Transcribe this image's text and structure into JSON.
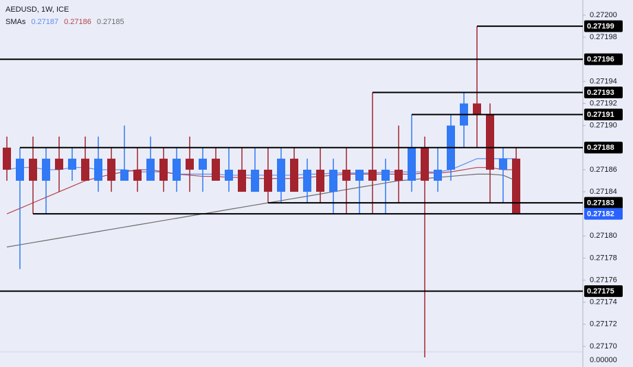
{
  "chart_data": {
    "type": "candlestick",
    "title": "AEDUSD, 1W, ICE",
    "sma_title": "SMAs",
    "sma_last": [
      0.27187,
      0.27186,
      0.27185
    ],
    "up_color": "#3179f5",
    "down_color": "#a3242e",
    "highlight_color": "#2962ff",
    "ylim": [
      0.271695,
      0.2720137
    ],
    "yticks": [
      {
        "value": 0.272,
        "label": "0.27200"
      },
      0.27198,
      0.27194,
      0.27192,
      {
        "value": 0.2719,
        "label": "0.27190"
      },
      0.27186,
      0.27184,
      {
        "value": 0.2718,
        "label": "0.27180"
      },
      0.27178,
      0.27176,
      0.27174,
      0.27172,
      {
        "value": 0.2717,
        "label": "0.27170"
      }
    ],
    "bottom_label": "0.00000",
    "levels": [
      0.27199,
      0.27196,
      0.27193,
      0.27191,
      0.27188,
      0.27183,
      0.27182,
      0.27175
    ],
    "open": [
      0.27188,
      0.27185,
      0.27187,
      0.27185,
      0.27187,
      0.27186,
      0.27187,
      0.27185,
      0.27187,
      0.27185,
      0.27186,
      0.27185,
      0.27187,
      0.27185,
      0.27187,
      0.27186,
      0.27187,
      0.27185,
      0.27186,
      0.27184,
      0.27186,
      0.27184,
      0.27187,
      0.27184,
      0.27186,
      0.27184,
      0.27186,
      0.27185,
      0.27186,
      0.27185,
      0.27186,
      0.27185,
      0.27188,
      0.27185,
      0.27186,
      0.2719,
      0.27192,
      0.27191,
      0.27186,
      0.27187
    ],
    "high": [
      0.27189,
      0.27188,
      0.27189,
      0.27188,
      0.27189,
      0.27188,
      0.27189,
      0.27189,
      0.27188,
      0.2719,
      0.27188,
      0.27189,
      0.27188,
      0.27188,
      0.27189,
      0.27188,
      0.27188,
      0.27188,
      0.27188,
      0.27188,
      0.27188,
      0.27188,
      0.27188,
      0.27187,
      0.27188,
      0.27187,
      0.27188,
      0.27186,
      0.27193,
      0.27187,
      0.2719,
      0.27191,
      0.27189,
      0.27188,
      0.27191,
      0.27193,
      0.27199,
      0.27192,
      0.27188,
      0.27188
    ],
    "low": [
      0.27185,
      0.27177,
      0.27182,
      0.27182,
      0.27184,
      0.27185,
      0.27185,
      0.27184,
      0.27184,
      0.27185,
      0.27184,
      0.27185,
      0.27184,
      0.27184,
      0.27184,
      0.27184,
      0.27185,
      0.27184,
      0.27184,
      0.27184,
      0.27183,
      0.27183,
      0.27184,
      0.27183,
      0.27183,
      0.27182,
      0.27182,
      0.27182,
      0.27182,
      0.27182,
      0.27183,
      0.27184,
      0.27169,
      0.27184,
      0.27185,
      0.27188,
      0.27188,
      0.27183,
      0.27183,
      0.27182
    ],
    "close": [
      0.27186,
      0.27187,
      0.27185,
      0.27187,
      0.27186,
      0.27187,
      0.27185,
      0.27187,
      0.27185,
      0.27186,
      0.27185,
      0.27187,
      0.27185,
      0.27187,
      0.27186,
      0.27187,
      0.27185,
      0.27186,
      0.27184,
      0.27186,
      0.27184,
      0.27187,
      0.27184,
      0.27186,
      0.27184,
      0.27186,
      0.27185,
      0.27186,
      0.27185,
      0.27186,
      0.27185,
      0.27188,
      0.27185,
      0.27186,
      0.2719,
      0.27192,
      0.27191,
      0.27186,
      0.27187,
      0.27182
    ],
    "series": [
      {
        "color": "#5b8def",
        "values": [
          0.27186,
          0.271862,
          0.271862,
          0.27186,
          0.27186,
          0.271862,
          0.271862,
          0.27186,
          0.27186,
          0.27186,
          0.271858,
          0.271858,
          0.271858,
          0.271856,
          0.271856,
          0.271856,
          0.271856,
          0.271855,
          0.271855,
          0.271855,
          0.271855,
          0.271855,
          0.271855,
          0.271856,
          0.271856,
          0.271857,
          0.271857,
          0.271857,
          0.271857,
          0.271858,
          0.271858,
          0.271858,
          0.271858,
          0.271858,
          0.27186,
          0.271865,
          0.27187,
          0.27187,
          0.27187,
          0.27187
        ]
      },
      {
        "color": "#b5434a",
        "values": [
          0.27182,
          0.271825,
          0.27183,
          0.271835,
          0.27184,
          0.271845,
          0.27185,
          0.271853,
          0.271856,
          0.271858,
          0.27186,
          0.27186,
          0.271858,
          0.271856,
          0.271855,
          0.271854,
          0.271854,
          0.271853,
          0.271853,
          0.271852,
          0.271852,
          0.271852,
          0.271852,
          0.271853,
          0.271854,
          0.271855,
          0.271856,
          0.271856,
          0.271856,
          0.271856,
          0.271856,
          0.271856,
          0.271857,
          0.271857,
          0.271858,
          0.27186,
          0.271862,
          0.271862,
          0.27186,
          0.27186
        ]
      },
      {
        "color": "#6b6b6b",
        "values": [
          0.27179,
          0.271792,
          0.271794,
          0.271796,
          0.271798,
          0.2718,
          0.271802,
          0.271804,
          0.271806,
          0.271808,
          0.27181,
          0.271812,
          0.271814,
          0.271816,
          0.271818,
          0.27182,
          0.271822,
          0.271824,
          0.271826,
          0.271828,
          0.27183,
          0.271832,
          0.271834,
          0.271836,
          0.271838,
          0.27184,
          0.271842,
          0.271844,
          0.271846,
          0.271848,
          0.27185,
          0.271851,
          0.271852,
          0.271853,
          0.271854,
          0.271855,
          0.271856,
          0.271856,
          0.271855,
          0.27185
        ]
      }
    ]
  }
}
